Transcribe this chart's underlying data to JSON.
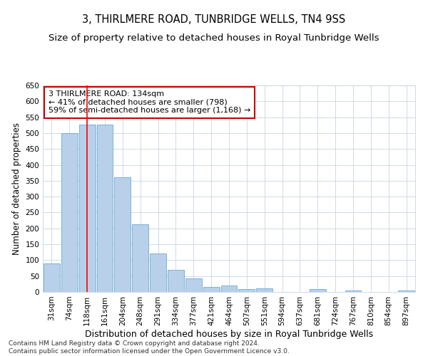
{
  "title": "3, THIRLMERE ROAD, TUNBRIDGE WELLS, TN4 9SS",
  "subtitle": "Size of property relative to detached houses in Royal Tunbridge Wells",
  "xlabel": "Distribution of detached houses by size in Royal Tunbridge Wells",
  "ylabel": "Number of detached properties",
  "footer_line1": "Contains HM Land Registry data © Crown copyright and database right 2024.",
  "footer_line2": "Contains public sector information licensed under the Open Government Licence v3.0.",
  "bar_labels": [
    "31sqm",
    "74sqm",
    "118sqm",
    "161sqm",
    "204sqm",
    "248sqm",
    "291sqm",
    "334sqm",
    "377sqm",
    "421sqm",
    "464sqm",
    "507sqm",
    "551sqm",
    "594sqm",
    "637sqm",
    "681sqm",
    "724sqm",
    "767sqm",
    "810sqm",
    "854sqm",
    "897sqm"
  ],
  "bar_values": [
    90,
    500,
    527,
    527,
    360,
    213,
    121,
    70,
    42,
    15,
    20,
    10,
    11,
    0,
    0,
    9,
    0,
    5,
    0,
    0,
    5
  ],
  "bar_color": "#b8d0ea",
  "bar_edge_color": "#6aaad4",
  "property_bin_index": 2,
  "vline_color": "#ff0000",
  "annotation_text": "3 THIRLMERE ROAD: 134sqm\n← 41% of detached houses are smaller (798)\n59% of semi-detached houses are larger (1,168) →",
  "annotation_box_color": "#ffffff",
  "annotation_box_edge_color": "#cc0000",
  "ylim": [
    0,
    650
  ],
  "yticks": [
    0,
    50,
    100,
    150,
    200,
    250,
    300,
    350,
    400,
    450,
    500,
    550,
    600,
    650
  ],
  "background_color": "#ffffff",
  "grid_color": "#c8d4e4",
  "title_fontsize": 10.5,
  "subtitle_fontsize": 9.5,
  "xlabel_fontsize": 9,
  "ylabel_fontsize": 8.5,
  "tick_fontsize": 7.5,
  "footer_fontsize": 6.5,
  "annot_fontsize": 8
}
